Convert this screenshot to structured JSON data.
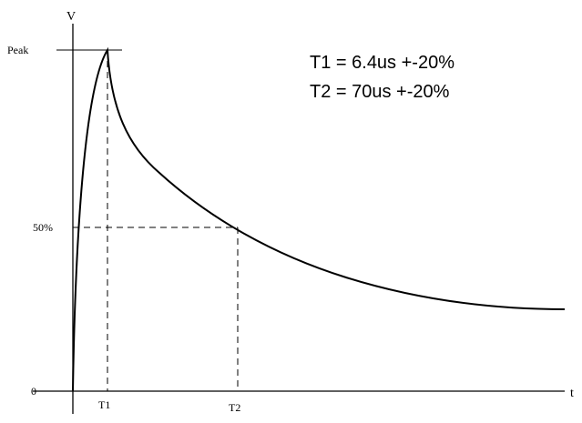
{
  "diagram": {
    "axis_labels": {
      "y": "V",
      "x": "t"
    },
    "y_markers": {
      "peak": "Peak",
      "half": "50%",
      "zero": "0"
    },
    "x_markers": {
      "t1": "T1",
      "t2": "T2"
    },
    "parameters": [
      "T1 = 6.4us +-20%",
      "T2 = 70us +-20%"
    ],
    "colors": {
      "line": "#000000",
      "background": "#ffffff"
    }
  }
}
